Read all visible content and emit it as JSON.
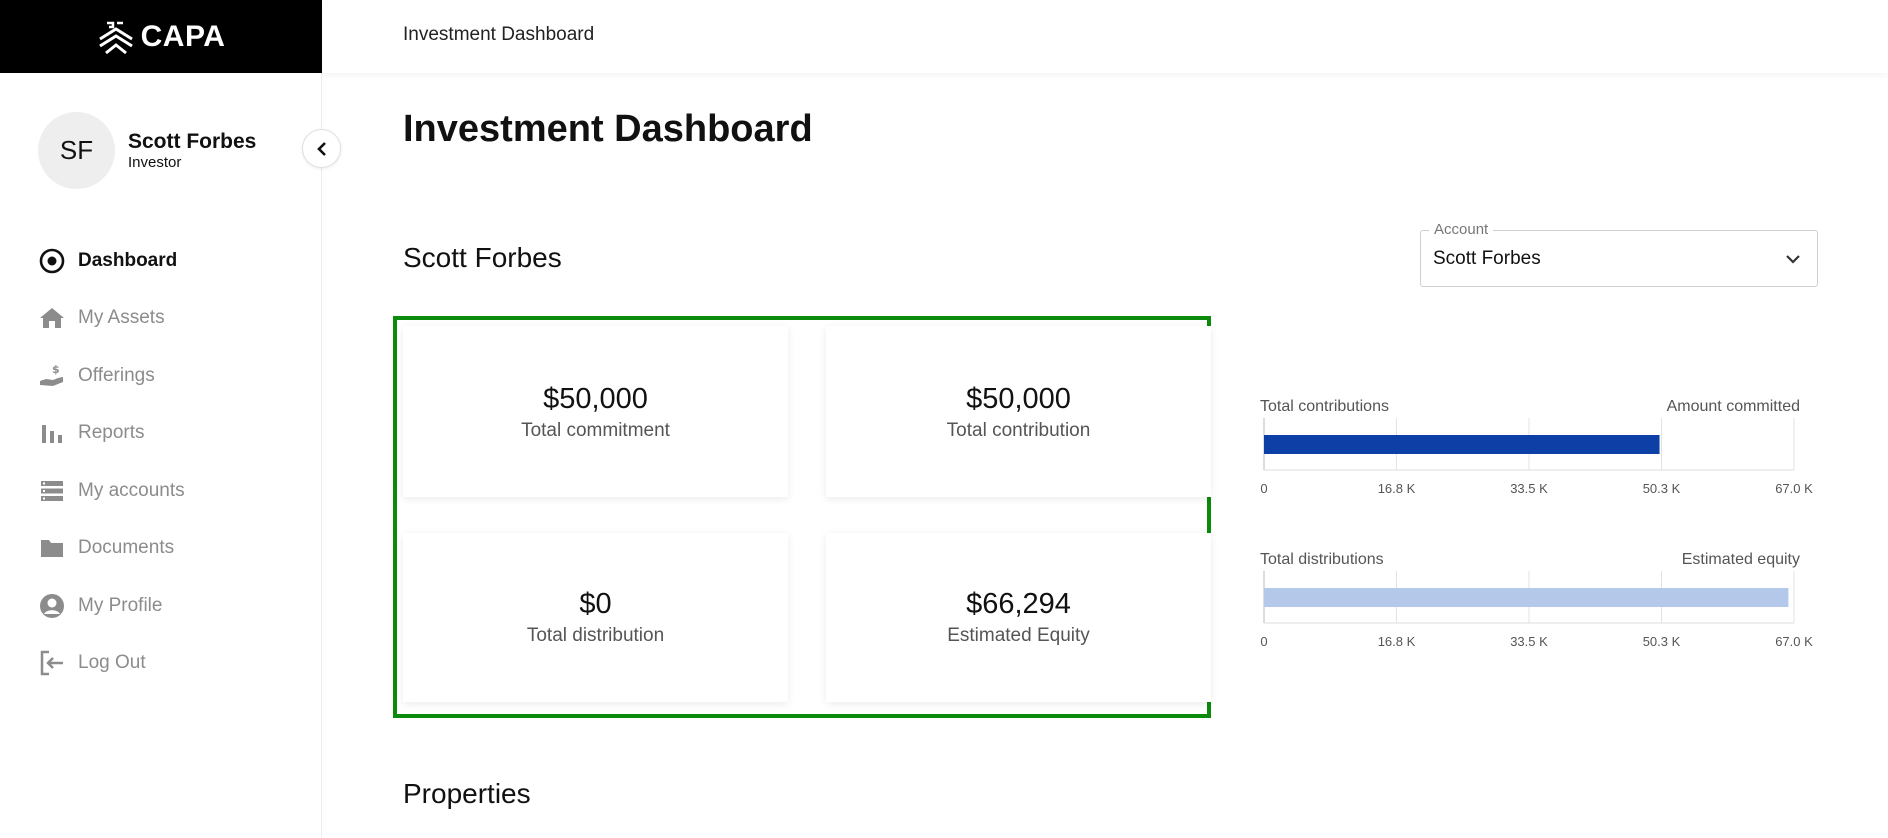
{
  "brand": {
    "name": "CAPA"
  },
  "header": {
    "title": "Investment Dashboard"
  },
  "user": {
    "initials": "SF",
    "name": "Scott Forbes",
    "role": "Investor"
  },
  "nav": {
    "items": [
      {
        "label": "Dashboard",
        "icon": "dashboard-icon",
        "active": true
      },
      {
        "label": "My Assets",
        "icon": "home-icon"
      },
      {
        "label": "Offerings",
        "icon": "offerings-icon"
      },
      {
        "label": "Reports",
        "icon": "reports-icon"
      },
      {
        "label": "My accounts",
        "icon": "accounts-icon"
      },
      {
        "label": "Documents",
        "icon": "folder-icon"
      },
      {
        "label": "My Profile",
        "icon": "profile-icon"
      },
      {
        "label": "Log Out",
        "icon": "logout-icon"
      }
    ]
  },
  "main": {
    "page_title": "Investment Dashboard",
    "investor_name": "Scott Forbes",
    "account_select": {
      "label": "Account",
      "value": "Scott Forbes"
    },
    "stats": {
      "commitment": {
        "value": "$50,000",
        "label": "Total commitment"
      },
      "contribution": {
        "value": "$50,000",
        "label": "Total contribution"
      },
      "distribution": {
        "value": "$0",
        "label": "Total distribution"
      },
      "equity": {
        "value": "$66,294",
        "label": "Estimated Equity"
      }
    },
    "properties_title": "Properties"
  },
  "colors": {
    "accent_box": "#0b8a0b",
    "bar_dark": "#0d3fa6",
    "bar_light": "#b4c8ea"
  },
  "chart_data": [
    {
      "type": "bar",
      "orientation": "horizontal",
      "label_left": "Total contributions",
      "label_right": "Amount committed",
      "value": 50000,
      "xlim": [
        0,
        67000
      ],
      "ticks": [
        "0",
        "16.8 K",
        "33.5 K",
        "50.3 K",
        "67.0 K"
      ],
      "tick_values": [
        0,
        16750,
        33500,
        50250,
        67000
      ]
    },
    {
      "type": "bar",
      "orientation": "horizontal",
      "label_left": "Total distributions",
      "label_right": "Estimated equity",
      "value": 66294,
      "xlim": [
        0,
        67000
      ],
      "ticks": [
        "0",
        "16.8 K",
        "33.5 K",
        "50.3 K",
        "67.0 K"
      ],
      "tick_values": [
        0,
        16750,
        33500,
        50250,
        67000
      ]
    }
  ]
}
